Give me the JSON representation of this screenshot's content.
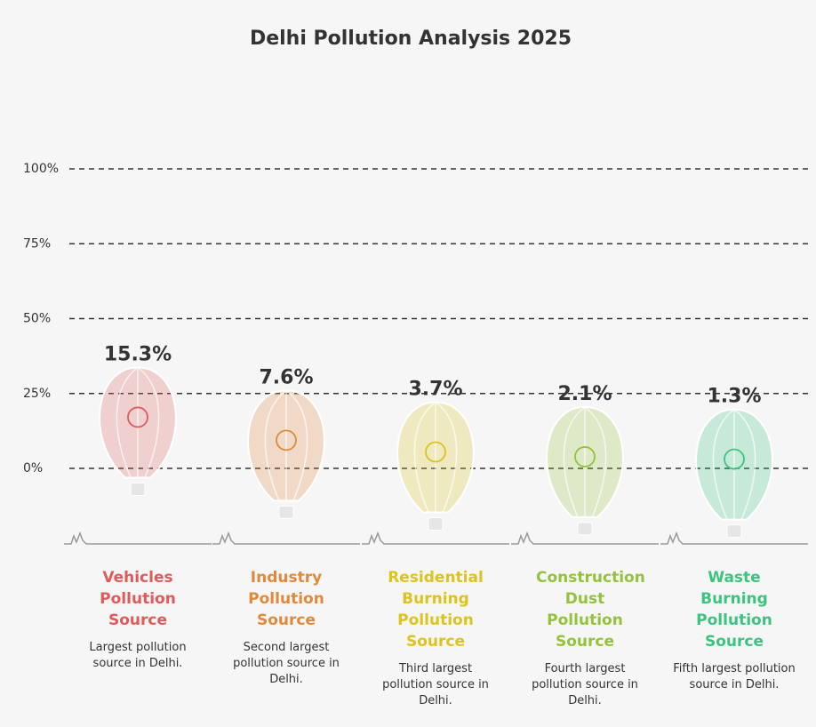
{
  "chart_data": {
    "type": "balloon",
    "title": "Delhi Pollution Analysis 2025",
    "categories": [
      "Vehicles Pollution Source",
      "Industry Pollution Source",
      "Residential Burning Pollution Source",
      "Construction Dust Pollution Source",
      "Waste Burning Pollution Source"
    ],
    "values": [
      15.3,
      7.6,
      3.7,
      2.1,
      1.3
    ],
    "value_labels": [
      "15.3%",
      "7.6%",
      "3.7%",
      "2.1%",
      "1.3%"
    ],
    "descriptions": [
      "Largest pollution source in Delhi.",
      "Second largest pollution source in Delhi.",
      "Third largest pollution source in Delhi.",
      "Fourth largest pollution source in Delhi.",
      "Fifth largest pollution source in Delhi."
    ],
    "colors": [
      "#e05a5a",
      "#e0893a",
      "#dcc31e",
      "#94c23a",
      "#3cc47f"
    ],
    "ylim": [
      0,
      100
    ],
    "yticks": [
      {
        "value": 0,
        "label": "0%"
      },
      {
        "value": 25,
        "label": "25%"
      },
      {
        "value": 50,
        "label": "50%"
      },
      {
        "value": 75,
        "label": "75%"
      },
      {
        "value": 100,
        "label": "100%"
      }
    ],
    "grid": true
  }
}
